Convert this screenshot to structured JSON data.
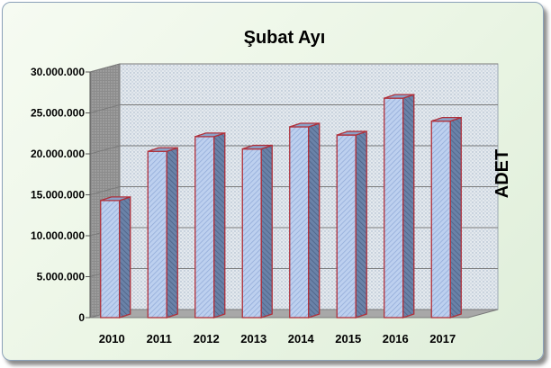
{
  "chart_data": {
    "type": "bar",
    "title": "Şubat Ayı",
    "ylabel": "ADET",
    "xlabel": "",
    "categories": [
      "2010",
      "2011",
      "2012",
      "2013",
      "2014",
      "2015",
      "2016",
      "2017"
    ],
    "values": [
      14300000,
      20300000,
      22100000,
      20600000,
      23300000,
      22300000,
      26800000,
      24000000
    ],
    "ylim": [
      0,
      30000000
    ],
    "yticks": [
      0,
      5000000,
      10000000,
      15000000,
      20000000,
      25000000,
      30000000
    ],
    "ytick_labels": [
      "0",
      "5.000.000",
      "10.000.000",
      "15.000.000",
      "20.000.000",
      "25.000.000",
      "30.000.000"
    ],
    "grid": true,
    "legend": "none",
    "style": "3d",
    "colors": {
      "bar_fill": "#b8cdee",
      "bar_stroke": "#b0303a",
      "bar_side": "#5a7096",
      "bar_top": "#8aa2c8",
      "wall": "#cdd4dc",
      "side_wall": "#9a9a9a",
      "floor": "#a8a8a8",
      "gridline": "#7a7a7a"
    }
  }
}
